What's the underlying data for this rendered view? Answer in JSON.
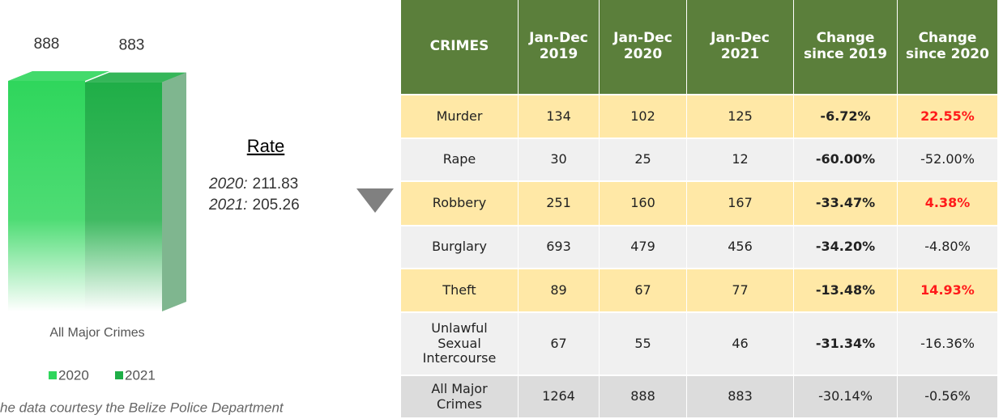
{
  "chart_data": {
    "type": "bar3d",
    "categories": [
      "All Major Crimes"
    ],
    "series": [
      {
        "name": "2020",
        "color": "#2fd65c",
        "values": [
          888
        ]
      },
      {
        "name": "2021",
        "color": "#1fae47",
        "values": [
          883
        ]
      }
    ]
  },
  "rate": {
    "title": "Rate",
    "lines": [
      {
        "label": "2020:",
        "value": "211.83"
      },
      {
        "label": "2021:",
        "value": "205.26"
      }
    ]
  },
  "footnote": "he data courtesy the Belize Police Department",
  "table": {
    "header": [
      "CRIMES",
      "Jan-Dec\n2019",
      "Jan-Dec\n2020",
      "Jan-Dec\n2021",
      "Change\nsince 2019",
      "Change\nsince 2020"
    ],
    "header_color": "#5b7f3b",
    "rows": [
      {
        "fill": "#ffe8a6",
        "red_last": true,
        "cells": [
          "Murder",
          "134",
          "102",
          "125",
          "-6.72%",
          "22.55%"
        ]
      },
      {
        "fill": "#f0f0f0",
        "red_last": false,
        "cells": [
          "Rape",
          "30",
          "25",
          "12",
          "-60.00%",
          "-52.00%"
        ]
      },
      {
        "fill": "#ffe8a6",
        "red_last": true,
        "cells": [
          "Robbery",
          "251",
          "160",
          "167",
          "-33.47%",
          "4.38%"
        ]
      },
      {
        "fill": "#f0f0f0",
        "red_last": false,
        "cells": [
          "Burglary",
          "693",
          "479",
          "456",
          "-34.20%",
          "-4.80%"
        ]
      },
      {
        "fill": "#ffe8a6",
        "red_last": true,
        "cells": [
          "Theft",
          "89",
          "67",
          "77",
          "-13.48%",
          "14.93%"
        ]
      },
      {
        "fill": "#f0f0f0",
        "red_last": false,
        "cells": [
          "Unlawful\nSexual\nIntercourse",
          "67",
          "55",
          "46",
          "-31.34%",
          "-16.36%"
        ]
      },
      {
        "fill": "#dcdcdc",
        "red_last": false,
        "bold_off": true,
        "cells": [
          "All Major\nCrimes",
          "1264",
          "888",
          "883",
          "-30.14%",
          "-0.56%"
        ]
      }
    ]
  }
}
